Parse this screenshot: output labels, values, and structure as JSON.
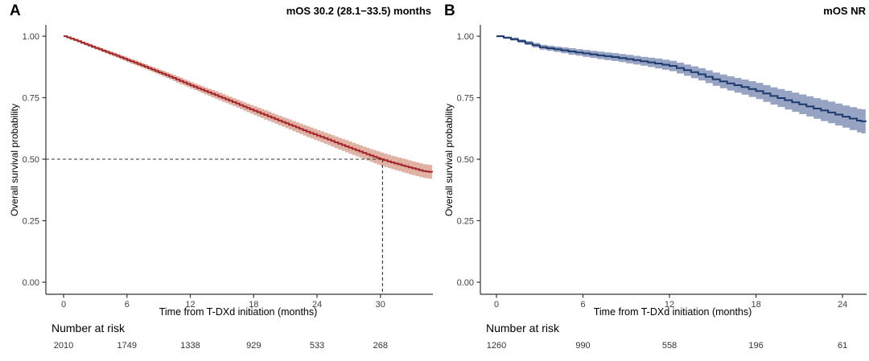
{
  "figure": {
    "y_axis_label": "Overall survival probability",
    "x_axis_label": "Time from T-DXd initiation (months)",
    "risk_header": "Number at risk"
  },
  "style": {
    "background": "#FFFFFF",
    "axis_color": "#333333",
    "tick_label_color": "#404040",
    "dashed_line_color": "#333333",
    "panel_a_line": "#A4262C",
    "panel_a_band": "#E0B2A3",
    "panel_b_line": "#1E3A6D",
    "panel_b_band": "#97A3C2"
  },
  "chart_data": [
    {
      "type": "line",
      "panel_label": "A",
      "title": "mOS 30.2 (28.1−33.5) months",
      "xlabel": "Time from T-DXd initiation (months)",
      "ylabel": "Overall survival probability",
      "x_ticks": [
        0,
        6,
        12,
        18,
        24,
        30
      ],
      "y_ticks": [
        "0.00",
        "0.25",
        "0.50",
        "0.75",
        "1.00"
      ],
      "xlim": [
        0,
        34.9
      ],
      "ylim": [
        0.0,
        1.0
      ],
      "grid": false,
      "legend": "none",
      "line_color": "#A4262C",
      "band_color": "#E0B2A3",
      "median": {
        "x": 30.2,
        "y": 0.5
      },
      "x": [
        0,
        1,
        2,
        3,
        4,
        5,
        6,
        7,
        8,
        9,
        10,
        11,
        12,
        13,
        14,
        15,
        16,
        17,
        18,
        19,
        20,
        21,
        22,
        23,
        24,
        25,
        26,
        27,
        28,
        29,
        30,
        31,
        32,
        33,
        34,
        34.9
      ],
      "survival": [
        1.0,
        0.985,
        0.968,
        0.952,
        0.936,
        0.92,
        0.903,
        0.887,
        0.87,
        0.853,
        0.836,
        0.818,
        0.8,
        0.783,
        0.766,
        0.749,
        0.732,
        0.714,
        0.697,
        0.68,
        0.663,
        0.646,
        0.629,
        0.612,
        0.596,
        0.58,
        0.563,
        0.547,
        0.531,
        0.515,
        0.5,
        0.487,
        0.475,
        0.463,
        0.452,
        0.447
      ],
      "ci_half": [
        0.004,
        0.005,
        0.006,
        0.006,
        0.007,
        0.008,
        0.009,
        0.01,
        0.01,
        0.011,
        0.012,
        0.013,
        0.013,
        0.014,
        0.015,
        0.016,
        0.016,
        0.017,
        0.018,
        0.019,
        0.019,
        0.02,
        0.021,
        0.022,
        0.022,
        0.023,
        0.024,
        0.025,
        0.025,
        0.026,
        0.027,
        0.027,
        0.028,
        0.028,
        0.028,
        0.028
      ],
      "risk": {
        "header": "Number at risk",
        "times": [
          0,
          6,
          12,
          18,
          24,
          30
        ],
        "counts": [
          2010,
          1749,
          1338,
          929,
          533,
          268
        ]
      }
    },
    {
      "type": "line",
      "panel_label": "B",
      "title": "mOS NR",
      "xlabel": "Time from T-DXd initiation (months)",
      "ylabel": "Overall survival probability",
      "x_ticks": [
        0,
        6,
        12,
        18,
        24
      ],
      "y_ticks": [
        "0.00",
        "0.25",
        "0.50",
        "0.75",
        "1.00"
      ],
      "xlim": [
        0,
        25.6
      ],
      "ylim": [
        0.0,
        1.0
      ],
      "grid": false,
      "legend": "none",
      "line_color": "#1E3A6D",
      "band_color": "#97A3C2",
      "median": null,
      "x": [
        0,
        1,
        2,
        3,
        4,
        5,
        6,
        7,
        8,
        9,
        10,
        11,
        12,
        13,
        14,
        15,
        16,
        17,
        18,
        19,
        20,
        21,
        22,
        23,
        24,
        25,
        25.6
      ],
      "survival": [
        1.0,
        0.988,
        0.972,
        0.955,
        0.947,
        0.938,
        0.93,
        0.922,
        0.915,
        0.907,
        0.898,
        0.889,
        0.879,
        0.862,
        0.845,
        0.825,
        0.808,
        0.793,
        0.777,
        0.757,
        0.74,
        0.723,
        0.706,
        0.69,
        0.673,
        0.657,
        0.651
      ],
      "ci_half": [
        0.004,
        0.006,
        0.008,
        0.01,
        0.011,
        0.013,
        0.014,
        0.015,
        0.016,
        0.017,
        0.018,
        0.02,
        0.021,
        0.023,
        0.025,
        0.027,
        0.029,
        0.031,
        0.033,
        0.035,
        0.038,
        0.04,
        0.042,
        0.044,
        0.045,
        0.048,
        0.05
      ],
      "risk": {
        "header": "Number at risk",
        "times": [
          0,
          6,
          12,
          18,
          24
        ],
        "counts": [
          1260,
          990,
          558,
          196,
          61
        ]
      }
    }
  ]
}
